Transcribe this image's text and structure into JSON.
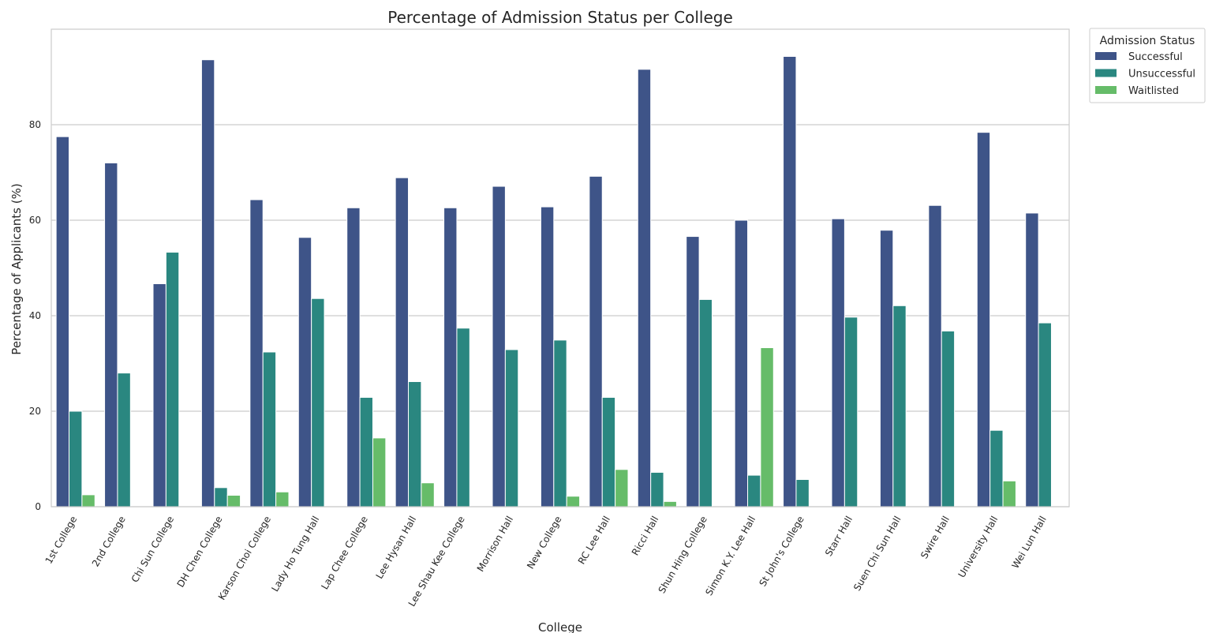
{
  "chart_data": {
    "type": "bar",
    "title": "Percentage of Admission Status per College",
    "xlabel": "College",
    "ylabel": "Percentage of Applicants (%)",
    "ylim": [
      0,
      100
    ],
    "yticks": [
      0,
      20,
      40,
      60,
      80
    ],
    "grid": true,
    "legend": {
      "title": "Admission Status",
      "placement": "outside-top-right"
    },
    "categories": [
      "1st College",
      "2nd College",
      "Chi Sun College",
      "DH Chen College",
      "Karson Choi College",
      "Lady Ho Tung Hall",
      "Lap Chee College",
      "Lee Hysan Hall",
      "Lee Shau Kee College",
      "Morrison Hall",
      "New College",
      "RC Lee Hall",
      "Ricci Hall",
      "Shun Hing College",
      "Simon K.Y. Lee Hall",
      "St John's College",
      "Starr Hall",
      "Suen Chi Sun Hall",
      "Swire Hall",
      "University Hall",
      "Wei Lun Hall"
    ],
    "series": [
      {
        "name": "Successful",
        "color": "#3e5488",
        "values": [
          77.5,
          72.0,
          46.7,
          93.6,
          64.3,
          56.4,
          62.6,
          68.9,
          62.6,
          67.1,
          62.8,
          69.2,
          91.6,
          56.6,
          60.0,
          94.3,
          60.3,
          57.9,
          63.1,
          78.4,
          61.5
        ]
      },
      {
        "name": "Unsuccessful",
        "color": "#2a8780",
        "values": [
          20.0,
          28.0,
          53.3,
          4.0,
          32.4,
          43.6,
          22.9,
          26.2,
          37.4,
          32.9,
          34.9,
          22.9,
          7.2,
          43.4,
          6.6,
          5.7,
          39.7,
          42.1,
          36.8,
          16.0,
          38.5
        ]
      },
      {
        "name": "Waitlisted",
        "color": "#66bc69",
        "values": [
          2.5,
          0,
          0,
          2.4,
          3.1,
          0,
          14.4,
          5.0,
          0,
          0,
          2.2,
          7.8,
          1.1,
          0,
          33.3,
          0,
          0,
          0,
          0,
          5.4,
          0
        ]
      }
    ]
  }
}
